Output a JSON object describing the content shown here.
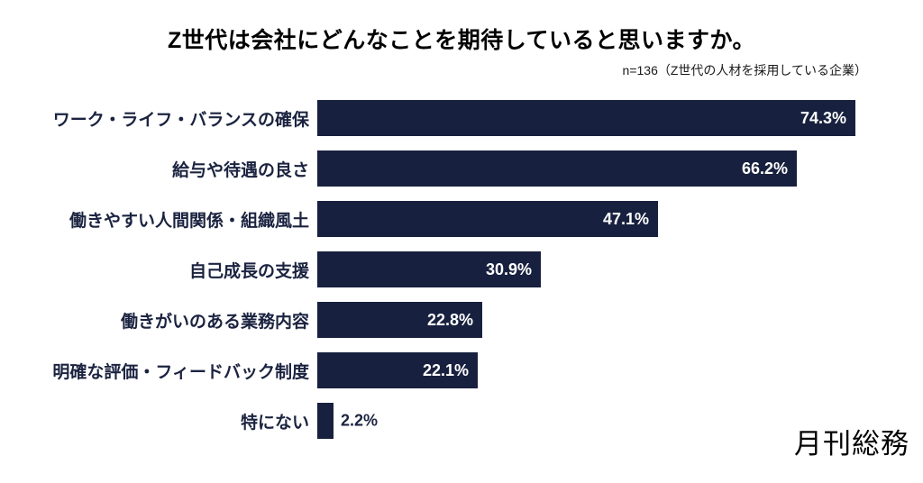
{
  "chart_data": {
    "type": "bar",
    "orientation": "horizontal",
    "title": "Z世代は会社にどんなことを期待していると思いますか。",
    "annotation": "n=136（Z世代の人材を採用している企業）",
    "categories": [
      "ワーク・ライフ・バランスの確保",
      "給与や待遇の良さ",
      "働きやすい人間関係・組織風土",
      "自己成長の支援",
      "働きがいのある業務内容",
      "明確な評価・フィードバック制度",
      "特にない"
    ],
    "values": [
      74.3,
      66.2,
      47.1,
      30.9,
      22.8,
      22.1,
      2.2
    ],
    "value_labels": [
      "74.3%",
      "66.2%",
      "47.1%",
      "30.9%",
      "22.8%",
      "22.1%",
      "2.2%"
    ],
    "xlabel": "",
    "ylabel": "",
    "xlim": [
      0,
      75.2
    ],
    "grid": false,
    "legend": false,
    "bar_color": "#17203E",
    "label_color": "#1B2340",
    "value_inside_color": "#FFFFFF",
    "background_color": "#FFFFFF"
  },
  "footer": {
    "logo_text": "月刊総務"
  }
}
